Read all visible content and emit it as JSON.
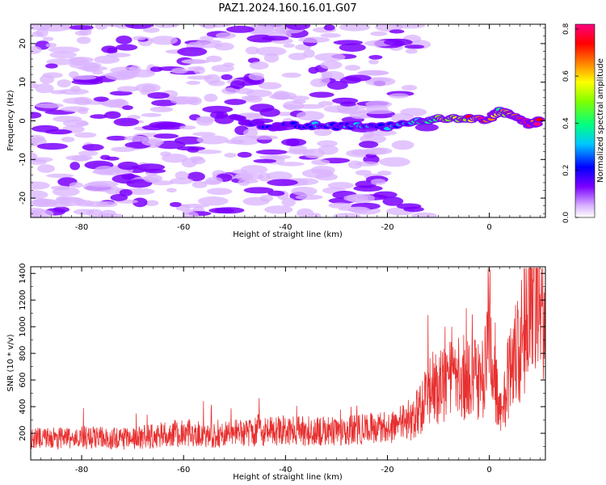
{
  "title": "PAZ1.2024.160.16.01.G07",
  "chart_data": [
    {
      "type": "heatmap",
      "xlabel": "Height of straight line (km)",
      "ylabel": "Frequency (Hz)",
      "xlim": [
        -90,
        11
      ],
      "ylim": [
        -25,
        25
      ],
      "xticks": [
        -80,
        -60,
        -40,
        -20,
        0
      ],
      "yticks": [
        -20,
        -10,
        0,
        10,
        20
      ],
      "colorbar": {
        "label": "Normalized spectral amplitude",
        "range": [
          0,
          0.82
        ],
        "ticks": [
          "0.0",
          "0.2",
          "0.4",
          "0.6",
          "0.8"
        ],
        "colors": [
          "#ffffff",
          "#d9b3ff",
          "#7b00ff",
          "#0000ff",
          "#00c8ff",
          "#00ff80",
          "#80ff00",
          "#ffff00",
          "#ff8000",
          "#ff0000",
          "#ff0080"
        ]
      },
      "ridge": [
        {
          "x": -50,
          "y": 0.5,
          "v": 0.18
        },
        {
          "x": -44,
          "y": -1.5,
          "v": 0.22
        },
        {
          "x": -36,
          "y": -1.0,
          "v": 0.25
        },
        {
          "x": -30,
          "y": -1.5,
          "v": 0.28
        },
        {
          "x": -26,
          "y": -1.0,
          "v": 0.3
        },
        {
          "x": -20,
          "y": -1.5,
          "v": 0.28
        },
        {
          "x": -14,
          "y": 0.0,
          "v": 0.35
        },
        {
          "x": -10,
          "y": 0.5,
          "v": 0.45
        },
        {
          "x": -5,
          "y": 0.5,
          "v": 0.6
        },
        {
          "x": 0,
          "y": 0.5,
          "v": 0.7
        },
        {
          "x": 2,
          "y": 2.5,
          "v": 0.55
        },
        {
          "x": 5,
          "y": 1.0,
          "v": 0.65
        },
        {
          "x": 8,
          "y": -1.0,
          "v": 0.8
        },
        {
          "x": 10,
          "y": 0.0,
          "v": 0.75
        }
      ]
    },
    {
      "type": "line",
      "xlabel": "Height of straight line (km)",
      "ylabel": "SNR (10 * v/v)",
      "xlim": [
        -90,
        11
      ],
      "ylim": [
        0,
        1450
      ],
      "xticks": [
        -80,
        -60,
        -40,
        -20,
        0
      ],
      "yticks": [
        200,
        400,
        600,
        800,
        1000,
        1200,
        1400
      ],
      "line_color": "#e83030",
      "envelope": [
        {
          "x": -90,
          "y": 150
        },
        {
          "x": -80,
          "y": 160
        },
        {
          "x": -70,
          "y": 150
        },
        {
          "x": -60,
          "y": 200
        },
        {
          "x": -55,
          "y": 170
        },
        {
          "x": -50,
          "y": 190
        },
        {
          "x": -40,
          "y": 210
        },
        {
          "x": -30,
          "y": 200
        },
        {
          "x": -20,
          "y": 230
        },
        {
          "x": -15,
          "y": 280
        },
        {
          "x": -12,
          "y": 480
        },
        {
          "x": -8,
          "y": 560
        },
        {
          "x": -4,
          "y": 600
        },
        {
          "x": -1,
          "y": 560
        },
        {
          "x": 0,
          "y": 1000
        },
        {
          "x": 1,
          "y": 550
        },
        {
          "x": 2.5,
          "y": 320
        },
        {
          "x": 4,
          "y": 650
        },
        {
          "x": 6,
          "y": 800
        },
        {
          "x": 8,
          "y": 1200
        },
        {
          "x": 10,
          "y": 1150
        },
        {
          "x": 11,
          "y": 1000
        }
      ]
    }
  ]
}
